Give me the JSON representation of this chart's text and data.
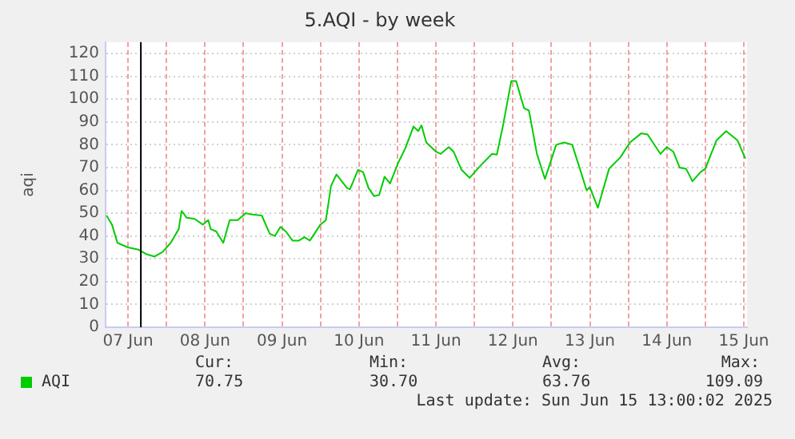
{
  "chart_data": {
    "type": "line",
    "title": "5.AQI - by week",
    "ylabel": "aqi",
    "xlim": [
      "2025-06-07T05:00",
      "2025-06-15T13:00"
    ],
    "xticks": [
      {
        "value": "2025-06-07T12:00",
        "label": "07 Jun"
      },
      {
        "value": "2025-06-08T00:00",
        "label": null
      },
      {
        "value": "2025-06-08T12:00",
        "label": "08 Jun"
      },
      {
        "value": "2025-06-09T00:00",
        "label": null
      },
      {
        "value": "2025-06-09T12:00",
        "label": "09 Jun"
      },
      {
        "value": "2025-06-10T00:00",
        "label": null
      },
      {
        "value": "2025-06-10T12:00",
        "label": "10 Jun"
      },
      {
        "value": "2025-06-11T00:00",
        "label": null
      },
      {
        "value": "2025-06-11T12:00",
        "label": "11 Jun"
      },
      {
        "value": "2025-06-12T00:00",
        "label": null
      },
      {
        "value": "2025-06-12T12:00",
        "label": "12 Jun"
      },
      {
        "value": "2025-06-13T00:00",
        "label": null
      },
      {
        "value": "2025-06-13T12:00",
        "label": "13 Jun"
      },
      {
        "value": "2025-06-14T00:00",
        "label": null
      },
      {
        "value": "2025-06-14T12:00",
        "label": "14 Jun"
      },
      {
        "value": "2025-06-15T00:00",
        "label": null
      },
      {
        "value": "2025-06-15T12:00",
        "label": "15 Jun"
      }
    ],
    "ylim": [
      0,
      125
    ],
    "yticks": [
      0,
      10,
      20,
      30,
      40,
      50,
      60,
      70,
      80,
      90,
      100,
      110,
      120
    ],
    "grid": true,
    "legend": "bottom",
    "marker": "none",
    "line_style": "solid",
    "ref_lines": [
      {
        "axis": "x",
        "value": "2025-06-07T16:00",
        "color": "#000000"
      }
    ],
    "series": [
      {
        "name": "AQI",
        "color": "#00cc00",
        "x": [
          "2025-06-07T05:18",
          "2025-06-07T07:00",
          "2025-06-07T08:42",
          "2025-06-07T12:00",
          "2025-06-07T15:18",
          "2025-06-07T17:48",
          "2025-06-07T20:18",
          "2025-06-07T22:48",
          "2025-06-08T01:18",
          "2025-06-08T03:48",
          "2025-06-08T04:42",
          "2025-06-08T06:18",
          "2025-06-08T08:48",
          "2025-06-08T11:18",
          "2025-06-08T13:00",
          "2025-06-08T13:48",
          "2025-06-08T15:30",
          "2025-06-08T17:42",
          "2025-06-08T19:42",
          "2025-06-08T22:12",
          "2025-06-09T00:42",
          "2025-06-09T02:18",
          "2025-06-09T05:42",
          "2025-06-09T08:12",
          "2025-06-09T09:48",
          "2025-06-09T11:30",
          "2025-06-09T13:12",
          "2025-06-09T15:18",
          "2025-06-09T17:18",
          "2025-06-09T19:00",
          "2025-06-09T20:42",
          "2025-06-10T00:00",
          "2025-06-10T01:42",
          "2025-06-10T03:18",
          "2025-06-10T05:00",
          "2025-06-10T08:18",
          "2025-06-10T09:12",
          "2025-06-10T11:42",
          "2025-06-10T13:18",
          "2025-06-10T15:00",
          "2025-06-10T16:42",
          "2025-06-10T18:18",
          "2025-06-10T20:00",
          "2025-06-10T21:42",
          "2025-06-11T00:12",
          "2025-06-11T02:30",
          "2025-06-11T05:00",
          "2025-06-11T06:30",
          "2025-06-11T07:30",
          "2025-06-11T09:00",
          "2025-06-11T12:00",
          "2025-06-11T13:30",
          "2025-06-11T16:00",
          "2025-06-11T17:30",
          "2025-06-11T20:00",
          "2025-06-11T22:30",
          "2025-06-12T02:00",
          "2025-06-12T05:30",
          "2025-06-12T07:00",
          "2025-06-12T09:00",
          "2025-06-12T11:30",
          "2025-06-12T13:00",
          "2025-06-12T15:30",
          "2025-06-12T17:00",
          "2025-06-12T19:30",
          "2025-06-12T22:00",
          "2025-06-13T01:30",
          "2025-06-13T04:00",
          "2025-06-13T06:30",
          "2025-06-13T09:00",
          "2025-06-13T11:00",
          "2025-06-13T12:00",
          "2025-06-13T14:30",
          "2025-06-13T18:00",
          "2025-06-13T21:30",
          "2025-06-14T00:30",
          "2025-06-14T04:00",
          "2025-06-14T06:00",
          "2025-06-14T10:00",
          "2025-06-14T12:00",
          "2025-06-14T14:00",
          "2025-06-14T16:00",
          "2025-06-14T18:00",
          "2025-06-14T20:00",
          "2025-06-14T22:30",
          "2025-06-15T00:00",
          "2025-06-15T03:30",
          "2025-06-15T06:30",
          "2025-06-15T10:00",
          "2025-06-15T12:30"
        ],
        "values": [
          49,
          45,
          37,
          35,
          34,
          32,
          31,
          33,
          37,
          43,
          51,
          48,
          47.5,
          45,
          47,
          43,
          42,
          37,
          47,
          47,
          50,
          49.5,
          49,
          41,
          40,
          44,
          42,
          38,
          38,
          39.5,
          38,
          45,
          47,
          62,
          67,
          61,
          60.5,
          69,
          68,
          61,
          57.5,
          58,
          66,
          63,
          72,
          78.6,
          88,
          86,
          88.5,
          81,
          77,
          76,
          79,
          77,
          69,
          65.5,
          71,
          76,
          75.7,
          89,
          108,
          108,
          96,
          95,
          76,
          65,
          80,
          81,
          80,
          69,
          60,
          61.4,
          52.4,
          69.5,
          74.5,
          81,
          85,
          84.5,
          76,
          79,
          77,
          70,
          69.5,
          64,
          68,
          69.5,
          82,
          86,
          82,
          74
        ]
      }
    ],
    "annotations": [
      "Cur:",
      "Min:",
      "Avg:",
      "Max:",
      "70.75",
      "30.70",
      "63.76",
      "109.09",
      "Last update: Sun Jun 15 13:00:02 2025"
    ]
  }
}
